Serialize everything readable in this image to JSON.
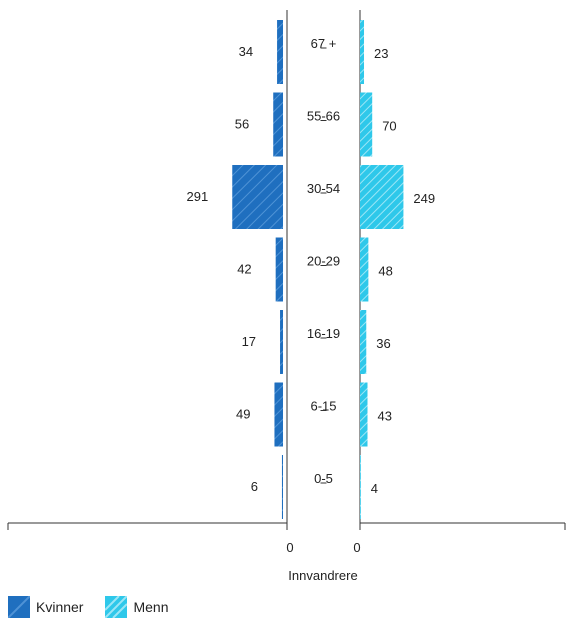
{
  "chart_data": {
    "type": "bar",
    "orientation": "horizontal-pyramid",
    "categories": [
      "67 +",
      "55-66",
      "30-54",
      "20-29",
      "16-19",
      "6-15",
      "0-5"
    ],
    "series": [
      {
        "name": "Kvinner",
        "values": [
          34,
          56,
          291,
          42,
          17,
          49,
          6
        ],
        "color": "#1f6fbf",
        "side": "left"
      },
      {
        "name": "Menn",
        "values": [
          23,
          70,
          249,
          48,
          36,
          43,
          4
        ],
        "color": "#2ec8ea",
        "side": "right"
      }
    ],
    "xlabel": "Innvandrere",
    "axis_ticks": [
      "0",
      "0"
    ],
    "xlim": [
      0,
      1600
    ],
    "legend": "bottom-left",
    "grid": false
  }
}
